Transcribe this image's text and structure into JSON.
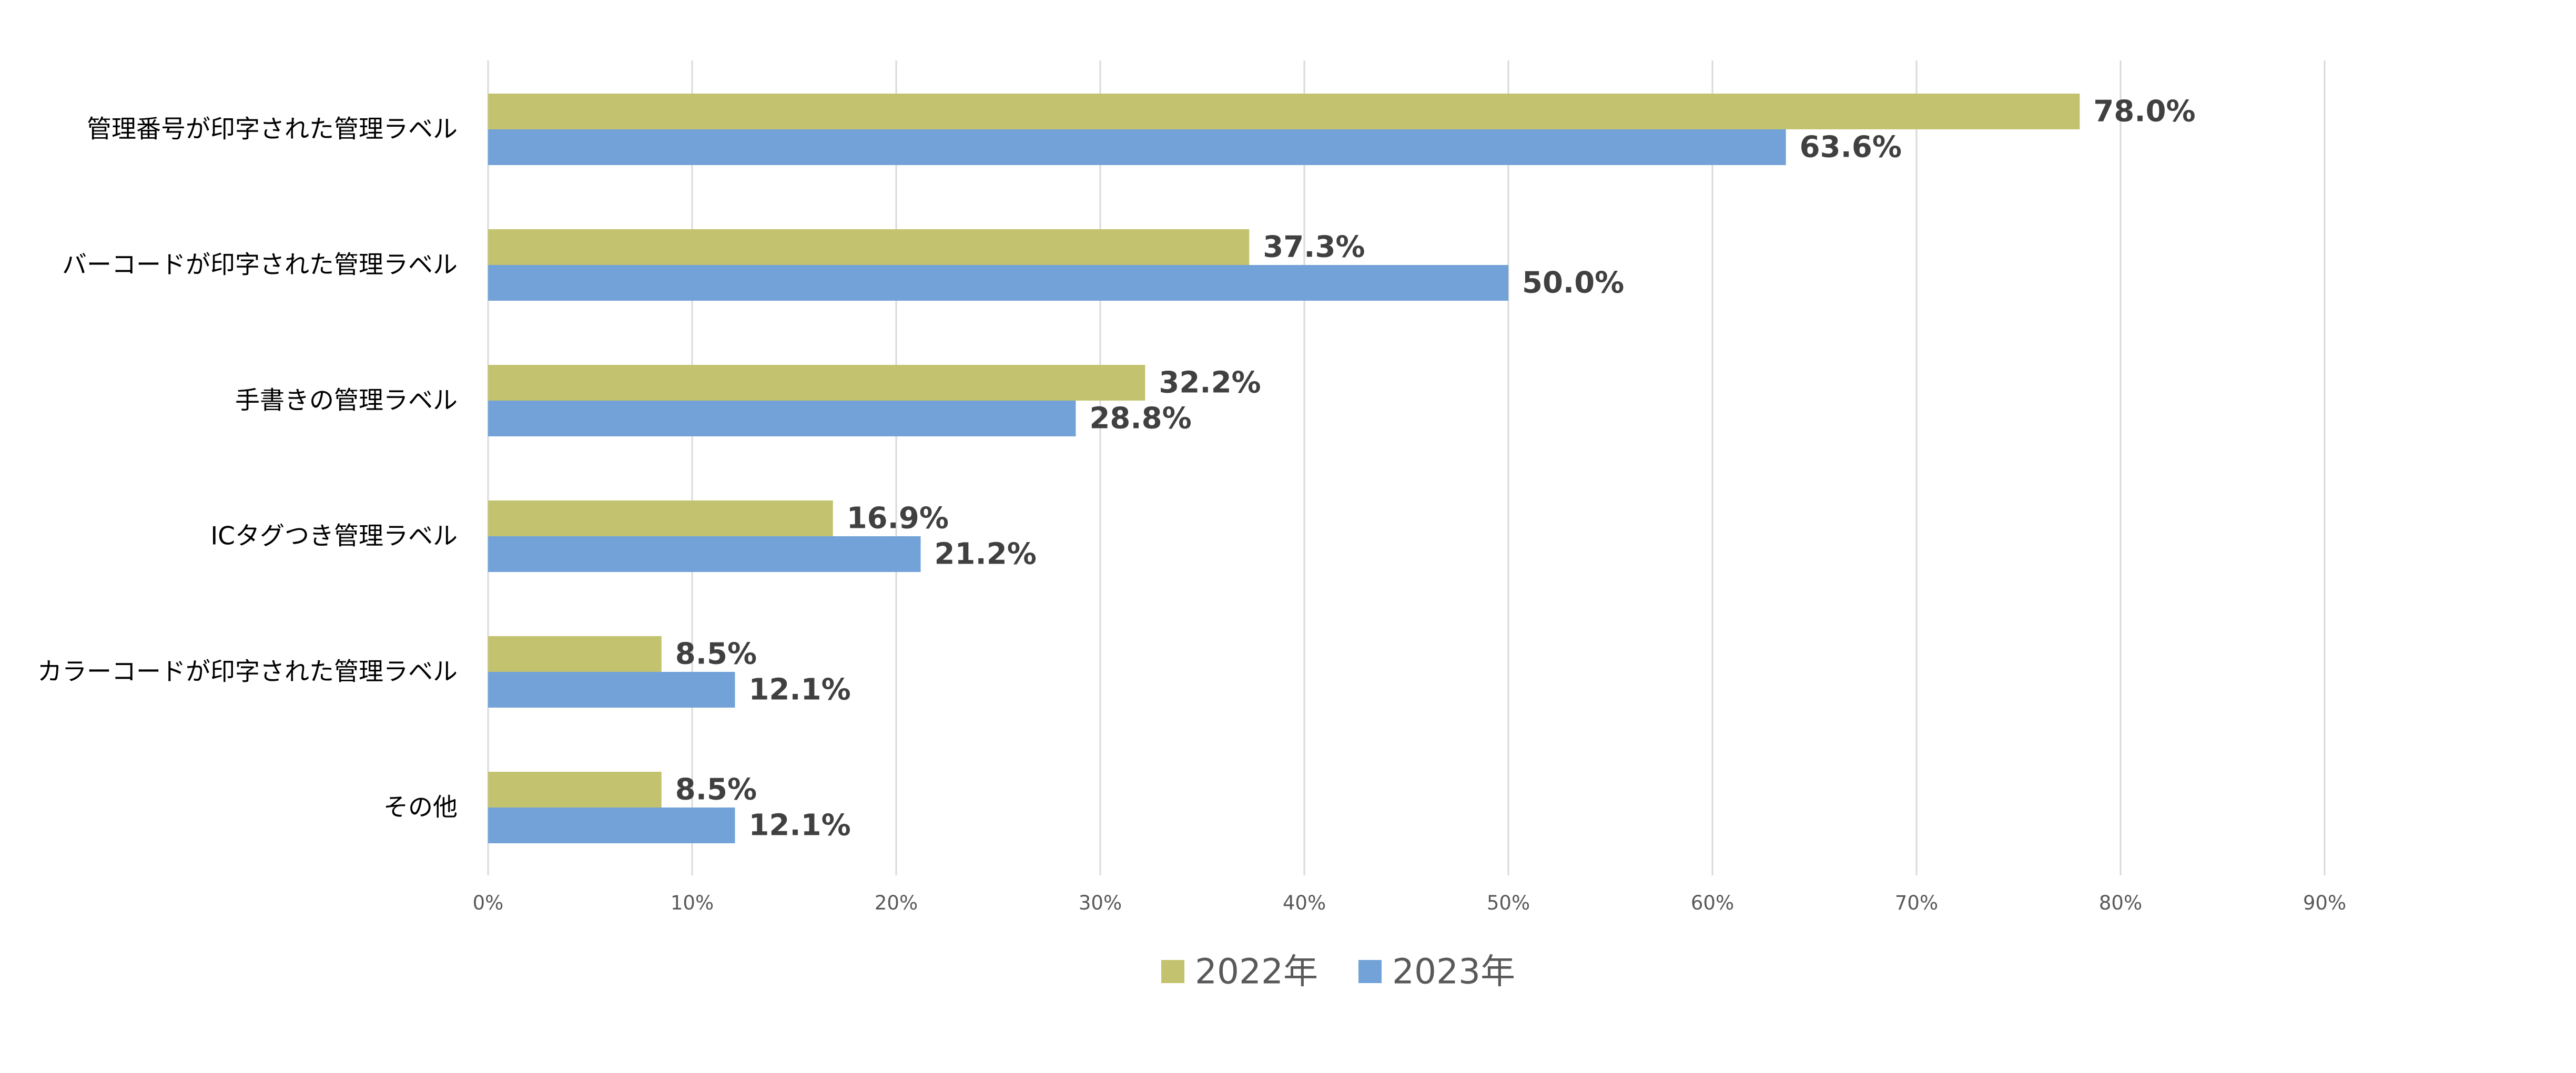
{
  "chart_data": {
    "type": "bar",
    "orientation": "horizontal",
    "title": "",
    "xlabel": "",
    "ylabel": "",
    "categories": [
      "管理番号が印字された管理ラベル",
      "バーコードが印字された管理ラベル",
      "手書きの管理ラベル",
      "ICタグつき管理ラベル",
      "カラーコードが印字された管理ラベル",
      "その他"
    ],
    "series": [
      {
        "name": "2022年",
        "color": "#c3c36f",
        "values": [
          78.0,
          37.3,
          32.2,
          16.9,
          8.5,
          8.5
        ],
        "labels": [
          "78.0%",
          "37.3%",
          "32.2%",
          "16.9%",
          "8.5%",
          "8.5%"
        ]
      },
      {
        "name": "2023年",
        "color": "#72a2d8",
        "values": [
          63.6,
          50.0,
          28.8,
          21.2,
          12.1,
          12.1
        ],
        "labels": [
          "63.6%",
          "50.0%",
          "28.8%",
          "21.2%",
          "12.1%",
          "12.1%"
        ]
      }
    ],
    "xlim": [
      0,
      90
    ],
    "x_ticks": [
      0,
      10,
      20,
      30,
      40,
      50,
      60,
      70,
      80,
      90
    ],
    "x_tick_labels": [
      "0%",
      "10%",
      "20%",
      "30%",
      "40%",
      "50%",
      "60%",
      "70%",
      "80%",
      "90%"
    ],
    "grid": true,
    "legend": "bottom-center",
    "gridline_color": "#d9d9d9"
  }
}
